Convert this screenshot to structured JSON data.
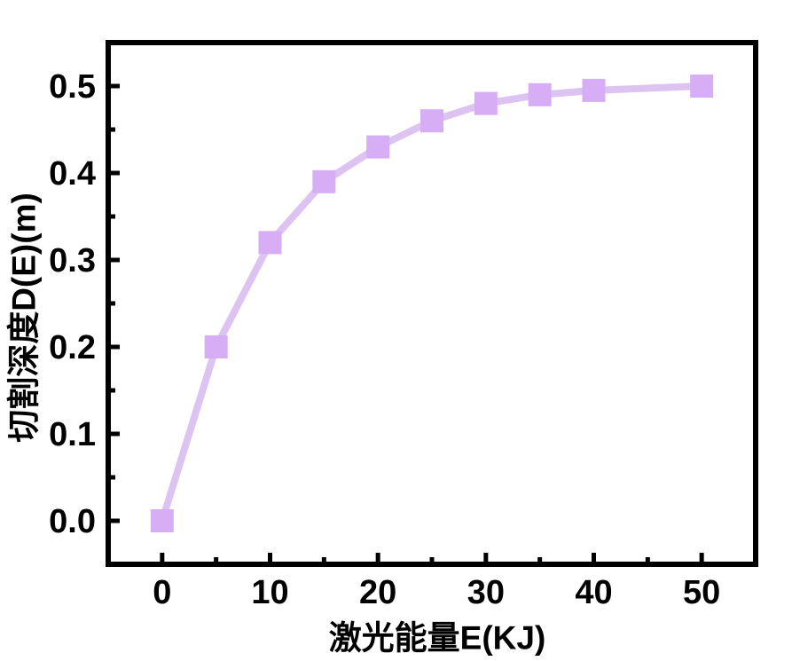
{
  "chart_data": {
    "type": "line",
    "title": "",
    "xlabel": "激光能量E(KJ)",
    "ylabel": "切割深度D(E)(m)",
    "x": [
      0,
      5,
      10,
      15,
      20,
      25,
      30,
      35,
      40,
      50
    ],
    "series": [
      {
        "name": "D(E)",
        "values": [
          0.0,
          0.2,
          0.32,
          0.39,
          0.43,
          0.46,
          0.48,
          0.49,
          0.495,
          0.5
        ]
      }
    ],
    "axes": {
      "xlim": [
        -5,
        55
      ],
      "ylim": [
        -0.05,
        0.55
      ],
      "xticks": [
        0,
        10,
        20,
        30,
        40,
        50
      ],
      "xtick_labels": [
        "0",
        "10",
        "20",
        "30",
        "40",
        "50"
      ],
      "x_minor_ticks": [
        5,
        15,
        25,
        35,
        45
      ],
      "yticks": [
        0,
        0.1,
        0.2,
        0.3,
        0.4,
        0.5
      ],
      "ytick_labels": [
        "0.0",
        "0.1",
        "0.2",
        "0.3",
        "0.4",
        "0.5"
      ],
      "y_minor_ticks": [
        0.05,
        0.15,
        0.25,
        0.35,
        0.45
      ],
      "grid": false,
      "tick_direction": "in"
    },
    "legend": {
      "visible": false
    },
    "style": {
      "line_color": "#dcc3f2",
      "marker_color": "#d7aef5",
      "marker_shape": "square",
      "axis_color": "#000000",
      "label_color": "#000000",
      "background": "#ffffff"
    }
  }
}
